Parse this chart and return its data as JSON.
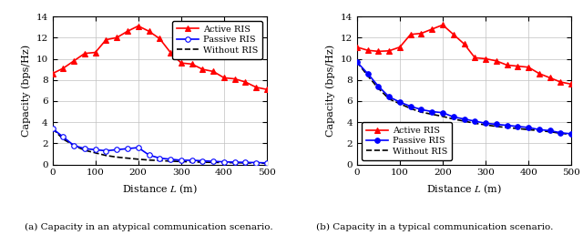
{
  "plot_a": {
    "title": "(a) Capacity in an atypical communication scenario.",
    "xlabel": "Distance $L$ (m)",
    "ylabel": "Capacity (bps/Hz)",
    "xlim": [
      0,
      500
    ],
    "ylim": [
      0,
      14
    ],
    "yticks": [
      0,
      2,
      4,
      6,
      8,
      10,
      12,
      14
    ],
    "xticks": [
      0,
      100,
      200,
      300,
      400,
      500
    ],
    "active_x": [
      0,
      25,
      50,
      75,
      100,
      125,
      150,
      175,
      200,
      225,
      250,
      275,
      300,
      325,
      350,
      375,
      400,
      425,
      450,
      475,
      500
    ],
    "active_y": [
      8.6,
      9.1,
      9.8,
      10.5,
      10.6,
      11.8,
      12.0,
      12.6,
      13.1,
      12.6,
      11.9,
      10.6,
      9.6,
      9.5,
      9.0,
      8.8,
      8.2,
      8.1,
      7.8,
      7.3,
      7.1
    ],
    "passive_x": [
      0,
      25,
      50,
      75,
      100,
      125,
      150,
      175,
      200,
      225,
      250,
      275,
      300,
      325,
      350,
      375,
      400,
      425,
      450,
      475,
      500
    ],
    "passive_y": [
      3.4,
      2.6,
      1.8,
      1.5,
      1.4,
      1.3,
      1.4,
      1.5,
      1.6,
      0.9,
      0.6,
      0.5,
      0.4,
      0.4,
      0.35,
      0.3,
      0.25,
      0.22,
      0.2,
      0.18,
      0.15
    ],
    "without_x": [
      0,
      25,
      50,
      75,
      100,
      125,
      150,
      175,
      200,
      225,
      250,
      275,
      300,
      325,
      350,
      375,
      400,
      425,
      450,
      475,
      500
    ],
    "without_y": [
      3.4,
      2.4,
      1.8,
      1.35,
      1.1,
      0.85,
      0.7,
      0.6,
      0.5,
      0.42,
      0.37,
      0.32,
      0.28,
      0.25,
      0.22,
      0.2,
      0.18,
      0.17,
      0.15,
      0.14,
      0.12
    ],
    "legend_loc": "upper right",
    "passive_filled": false
  },
  "plot_b": {
    "title": "(b) Capacity in a typical communication scenario.",
    "xlabel": "Distance $L$ (m)",
    "ylabel": "Capacity (bps/Hz)",
    "xlim": [
      0,
      500
    ],
    "ylim": [
      0,
      14
    ],
    "yticks": [
      0,
      2,
      4,
      6,
      8,
      10,
      12,
      14
    ],
    "xticks": [
      0,
      100,
      200,
      300,
      400,
      500
    ],
    "active_x": [
      0,
      25,
      50,
      75,
      100,
      125,
      150,
      175,
      200,
      225,
      250,
      275,
      300,
      325,
      350,
      375,
      400,
      425,
      450,
      475,
      500
    ],
    "active_y": [
      11.1,
      10.8,
      10.7,
      10.75,
      11.1,
      12.3,
      12.4,
      12.8,
      13.2,
      12.3,
      11.4,
      10.1,
      10.0,
      9.8,
      9.4,
      9.3,
      9.2,
      8.6,
      8.2,
      7.8,
      7.6
    ],
    "passive_x": [
      0,
      25,
      50,
      75,
      100,
      125,
      150,
      175,
      200,
      225,
      250,
      275,
      300,
      325,
      350,
      375,
      400,
      425,
      450,
      475,
      500
    ],
    "passive_y": [
      9.7,
      8.6,
      7.4,
      6.4,
      5.9,
      5.5,
      5.2,
      5.0,
      4.9,
      4.5,
      4.3,
      4.1,
      3.9,
      3.8,
      3.7,
      3.6,
      3.5,
      3.3,
      3.2,
      3.0,
      2.9
    ],
    "without_x": [
      0,
      25,
      50,
      75,
      100,
      125,
      150,
      175,
      200,
      225,
      250,
      275,
      300,
      325,
      350,
      375,
      400,
      425,
      450,
      475,
      500
    ],
    "without_y": [
      9.7,
      8.4,
      7.2,
      6.2,
      5.75,
      5.3,
      4.95,
      4.75,
      4.55,
      4.3,
      4.1,
      3.9,
      3.75,
      3.6,
      3.5,
      3.4,
      3.3,
      3.2,
      3.1,
      2.95,
      2.85
    ],
    "legend_loc": "lower left",
    "passive_filled": true
  },
  "active_color": "#FF0000",
  "passive_color": "#0000FF",
  "without_color": "#000000",
  "marker_active": "^",
  "marker_passive": "o",
  "legend_labels": [
    "Active RIS",
    "Passive RIS",
    "Without RIS"
  ],
  "marker_size": 4,
  "linewidth": 1.2
}
